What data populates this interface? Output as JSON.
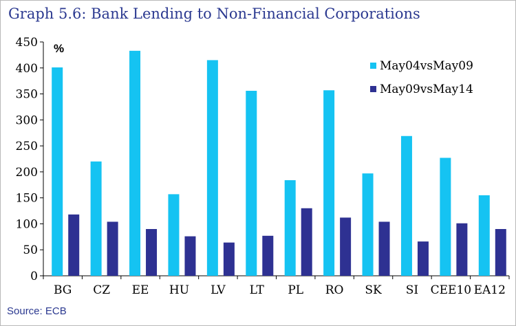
{
  "title": "Graph 5.6: Bank Lending to Non-Financial Corporations",
  "source": "Source: ECB",
  "colors": {
    "series1": "#15c3f2",
    "series2": "#2e3192",
    "title": "#2b3990"
  },
  "chart_data": {
    "type": "bar",
    "title": "Graph 5.6: Bank Lending to Non-Financial Corporations",
    "ylabel": "%",
    "xlabel": "",
    "ylim": [
      0,
      450
    ],
    "yticks": [
      0,
      50,
      100,
      150,
      200,
      250,
      300,
      350,
      400,
      450
    ],
    "categories": [
      "BG",
      "CZ",
      "EE",
      "HU",
      "LV",
      "LT",
      "PL",
      "RO",
      "SK",
      "SI",
      "CEE10",
      "EA12"
    ],
    "series": [
      {
        "name": "May04vsMay09",
        "values": [
          401,
          220,
          433,
          157,
          415,
          356,
          184,
          357,
          197,
          269,
          227,
          155
        ]
      },
      {
        "name": "May09vsMay14",
        "values": [
          118,
          104,
          90,
          76,
          64,
          77,
          130,
          112,
          104,
          66,
          101,
          90
        ]
      }
    ],
    "legend_position": "top-right",
    "grid": false
  }
}
